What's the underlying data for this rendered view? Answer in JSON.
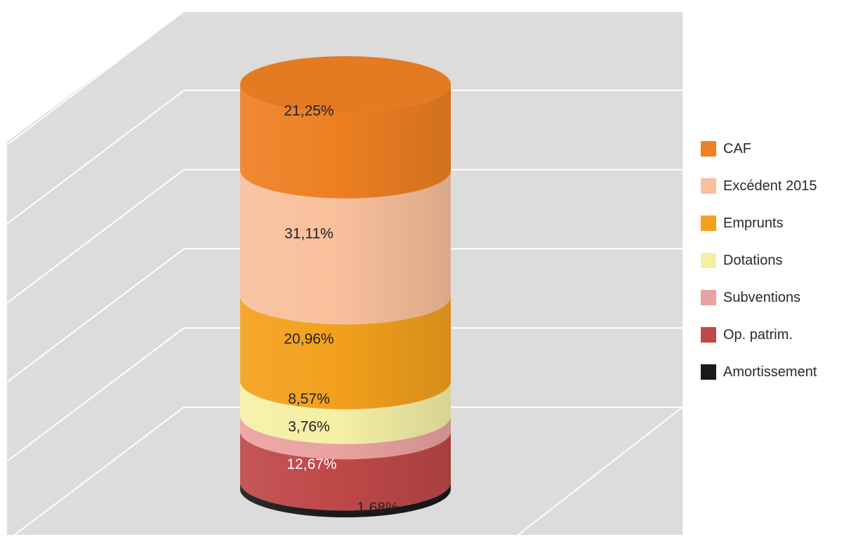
{
  "chart_data": {
    "type": "bar",
    "subtype": "stacked-cylinder-3d",
    "title": "",
    "xlabel": "",
    "ylabel": "",
    "categories": [
      ""
    ],
    "series": [
      {
        "name": "CAF",
        "values": [
          21.25
        ],
        "label": "21,25%",
        "color": "#ee7f22"
      },
      {
        "name": "Excédent 2015",
        "values": [
          31.11
        ],
        "label": "31,11%",
        "color": "#f9c09c"
      },
      {
        "name": "Emprunts",
        "values": [
          20.96
        ],
        "label": "20,96%",
        "color": "#f3a01c"
      },
      {
        "name": "Dotations",
        "values": [
          8.57
        ],
        "label": "8,57%",
        "color": "#f5f0a6"
      },
      {
        "name": "Subventions",
        "values": [
          3.76
        ],
        "label": "3,76%",
        "color": "#eaa2a0"
      },
      {
        "name": "Op. patrim.",
        "values": [
          12.67
        ],
        "label": "12,67%",
        "color": "#bf4848"
      },
      {
        "name": "Amortissement",
        "values": [
          1.68
        ],
        "label": "1,68%",
        "color": "#1a1a1a"
      }
    ],
    "stack_order": [
      "Amortissement",
      "Op. patrim.",
      "Subventions",
      "Dotations",
      "Emprunts",
      "Excédent 2015",
      "CAF"
    ],
    "ylim": [
      0,
      100
    ],
    "grid": true,
    "legend_position": "right",
    "background": "#dcdcdc"
  }
}
